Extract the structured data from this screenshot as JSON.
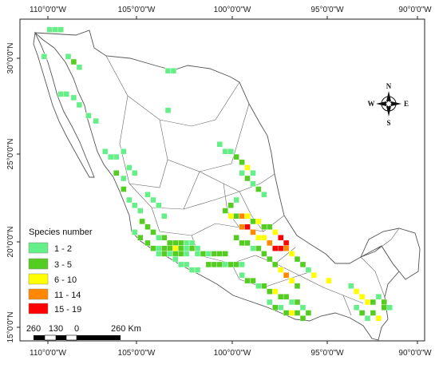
{
  "map": {
    "top_ticks": [
      "110°0'0\"W",
      "105°0'0\"W",
      "100°0'0\"W",
      "95°0'0\"W",
      "90°0'0\"W"
    ],
    "bottom_ticks": [
      "110°0'0\"W",
      "105°0'0\"W",
      "100°0'0\"W",
      "95°0'0\"W",
      "90°0'0\"W"
    ],
    "left_ticks": [
      "30°0'0\"N",
      "25°0'0\"N",
      "20°0'0\"N",
      "15°0'0\"N"
    ],
    "land_color": "#ffffff",
    "boundary_color": "#555555"
  },
  "legend": {
    "title": "Species number",
    "classes": [
      {
        "label": "1 - 2",
        "color": "#66ee88",
        "min": 1,
        "max": 2
      },
      {
        "label": "3 - 5",
        "color": "#55cc22",
        "min": 3,
        "max": 5
      },
      {
        "label": "6 - 10",
        "color": "#ffff00",
        "min": 6,
        "max": 10
      },
      {
        "label": "11 - 14",
        "color": "#ff8800",
        "min": 11,
        "max": 14
      },
      {
        "label": "15 - 19",
        "color": "#ff0000",
        "min": 15,
        "max": 19
      }
    ]
  },
  "scale_bar": {
    "labels": [
      "260",
      "130",
      "0",
      "260 Km"
    ]
  },
  "north_arrow": {
    "n": "N",
    "s": "S",
    "e": "E",
    "w": "W"
  },
  "grid_cells": [
    [
      -109.9,
      31.6,
      1
    ],
    [
      -109.6,
      31.6,
      1
    ],
    [
      -109.3,
      31.6,
      1
    ],
    [
      -110.2,
      30.1,
      1
    ],
    [
      -108.9,
      30.1,
      1
    ],
    [
      -108.6,
      29.8,
      3
    ],
    [
      -108.3,
      29.5,
      1
    ],
    [
      -109.3,
      28.0,
      1
    ],
    [
      -109.0,
      28.0,
      1
    ],
    [
      -108.6,
      27.8,
      1
    ],
    [
      -108.3,
      27.4,
      1
    ],
    [
      -107.8,
      26.8,
      1
    ],
    [
      -107.4,
      26.5,
      1
    ],
    [
      -103.5,
      29.3,
      1
    ],
    [
      -103.2,
      29.3,
      1
    ],
    [
      -103.5,
      27.1,
      1
    ],
    [
      -106.9,
      24.8,
      1
    ],
    [
      -106.6,
      24.5,
      1
    ],
    [
      -106.3,
      24.5,
      1
    ],
    [
      -105.9,
      24.8,
      1
    ],
    [
      -106.3,
      23.6,
      3
    ],
    [
      -105.9,
      23.3,
      1
    ],
    [
      -105.6,
      23.9,
      1
    ],
    [
      -105.3,
      23.6,
      1
    ],
    [
      -105.9,
      22.7,
      3
    ],
    [
      -105.6,
      22.1,
      1
    ],
    [
      -105.3,
      21.8,
      1
    ],
    [
      -105.0,
      21.5,
      1
    ],
    [
      -104.6,
      22.4,
      1
    ],
    [
      -104.3,
      22.1,
      1
    ],
    [
      -104.0,
      21.8,
      1
    ],
    [
      -103.7,
      21.2,
      1
    ],
    [
      -104.9,
      20.9,
      3
    ],
    [
      -104.6,
      20.6,
      3
    ],
    [
      -104.3,
      20.3,
      3
    ],
    [
      -104.0,
      20.0,
      1
    ],
    [
      -103.7,
      20.0,
      3
    ],
    [
      -103.4,
      19.7,
      3
    ],
    [
      -103.1,
      19.7,
      3
    ],
    [
      -102.8,
      19.7,
      3
    ],
    [
      -102.5,
      19.7,
      1
    ],
    [
      -102.2,
      19.7,
      1
    ],
    [
      -105.3,
      20.3,
      1
    ],
    [
      -105.0,
      20.0,
      3
    ],
    [
      -104.6,
      19.7,
      3
    ],
    [
      -104.3,
      19.4,
      3
    ],
    [
      -104.0,
      19.4,
      1
    ],
    [
      -103.7,
      19.4,
      3
    ],
    [
      -103.4,
      19.4,
      3
    ],
    [
      -103.1,
      19.4,
      6
    ],
    [
      -102.8,
      19.4,
      3
    ],
    [
      -102.5,
      19.4,
      1
    ],
    [
      -102.2,
      19.4,
      3
    ],
    [
      -101.9,
      19.4,
      1
    ],
    [
      -104.0,
      19.1,
      1
    ],
    [
      -103.7,
      19.1,
      3
    ],
    [
      -103.4,
      19.1,
      1
    ],
    [
      -103.1,
      19.1,
      3
    ],
    [
      -102.8,
      19.1,
      3
    ],
    [
      -102.5,
      19.1,
      1
    ],
    [
      -101.9,
      19.1,
      1
    ],
    [
      -101.6,
      19.1,
      3
    ],
    [
      -101.3,
      19.1,
      1
    ],
    [
      -101.0,
      19.1,
      3
    ],
    [
      -100.7,
      19.1,
      3
    ],
    [
      -100.4,
      19.1,
      3
    ],
    [
      -103.1,
      18.8,
      1
    ],
    [
      -102.8,
      18.5,
      1
    ],
    [
      -102.5,
      18.5,
      1
    ],
    [
      -102.2,
      18.2,
      1
    ],
    [
      -101.9,
      18.2,
      1
    ],
    [
      -101.3,
      18.5,
      3
    ],
    [
      -101.0,
      18.5,
      3
    ],
    [
      -100.7,
      18.5,
      3
    ],
    [
      -100.4,
      18.5,
      1
    ],
    [
      -100.1,
      18.5,
      3
    ],
    [
      -99.8,
      18.5,
      3
    ],
    [
      -99.5,
      18.5,
      1
    ],
    [
      -100.7,
      25.2,
      1
    ],
    [
      -100.4,
      24.8,
      1
    ],
    [
      -100.1,
      24.8,
      1
    ],
    [
      -99.8,
      24.5,
      3
    ],
    [
      -99.5,
      24.2,
      3
    ],
    [
      -99.2,
      23.9,
      6
    ],
    [
      -98.9,
      23.6,
      1
    ],
    [
      -99.5,
      23.6,
      1
    ],
    [
      -99.2,
      23.3,
      3
    ],
    [
      -98.9,
      23.0,
      1
    ],
    [
      -98.6,
      22.7,
      3
    ],
    [
      -98.3,
      22.4,
      1
    ],
    [
      -99.8,
      22.1,
      1
    ],
    [
      -100.1,
      21.8,
      3
    ],
    [
      -100.4,
      21.5,
      3
    ],
    [
      -100.1,
      21.2,
      6
    ],
    [
      -99.8,
      21.2,
      3
    ],
    [
      -99.5,
      21.2,
      11
    ],
    [
      -99.2,
      21.2,
      6
    ],
    [
      -98.9,
      20.9,
      3
    ],
    [
      -98.6,
      20.9,
      6
    ],
    [
      -98.3,
      20.6,
      3
    ],
    [
      -98.0,
      20.6,
      3
    ],
    [
      -97.7,
      20.3,
      6
    ],
    [
      -97.4,
      20.0,
      15
    ],
    [
      -97.1,
      19.7,
      15
    ],
    [
      -99.5,
      20.6,
      11
    ],
    [
      -99.2,
      20.6,
      15
    ],
    [
      -98.9,
      20.3,
      11
    ],
    [
      -98.6,
      20.0,
      6
    ],
    [
      -98.3,
      20.0,
      6
    ],
    [
      -98.0,
      19.7,
      11
    ],
    [
      -97.7,
      19.4,
      15
    ],
    [
      -97.4,
      19.4,
      15
    ],
    [
      -97.1,
      19.4,
      11
    ],
    [
      -96.8,
      19.1,
      6
    ],
    [
      -96.5,
      18.8,
      3
    ],
    [
      -99.8,
      20.0,
      3
    ],
    [
      -99.5,
      19.7,
      3
    ],
    [
      -99.2,
      19.7,
      3
    ],
    [
      -98.9,
      19.4,
      1
    ],
    [
      -98.6,
      19.4,
      3
    ],
    [
      -98.3,
      19.1,
      3
    ],
    [
      -98.0,
      18.8,
      3
    ],
    [
      -97.7,
      18.5,
      3
    ],
    [
      -97.4,
      18.2,
      6
    ],
    [
      -97.1,
      17.9,
      11
    ],
    [
      -96.8,
      17.6,
      6
    ],
    [
      -96.5,
      17.3,
      3
    ],
    [
      -99.5,
      17.9,
      1
    ],
    [
      -99.2,
      17.6,
      3
    ],
    [
      -98.9,
      17.6,
      3
    ],
    [
      -98.6,
      17.3,
      1
    ],
    [
      -98.3,
      17.3,
      3
    ],
    [
      -98.0,
      17.0,
      3
    ],
    [
      -97.7,
      17.0,
      6
    ],
    [
      -97.4,
      16.7,
      3
    ],
    [
      -97.1,
      16.7,
      3
    ],
    [
      -96.8,
      16.4,
      1
    ],
    [
      -96.5,
      16.4,
      3
    ],
    [
      -96.2,
      16.1,
      1
    ],
    [
      -98.0,
      16.4,
      1
    ],
    [
      -97.7,
      16.1,
      3
    ],
    [
      -97.4,
      16.1,
      1
    ],
    [
      -97.1,
      15.8,
      3
    ],
    [
      -96.8,
      15.8,
      6
    ],
    [
      -96.5,
      15.8,
      3
    ],
    [
      -96.2,
      15.5,
      3
    ],
    [
      -95.9,
      15.8,
      3
    ],
    [
      -96.2,
      18.5,
      3
    ],
    [
      -95.9,
      18.2,
      1
    ],
    [
      -95.6,
      17.9,
      6
    ],
    [
      -94.8,
      17.6,
      6
    ],
    [
      -93.6,
      17.3,
      1
    ],
    [
      -93.3,
      17.0,
      6
    ],
    [
      -93.0,
      16.7,
      6
    ],
    [
      -92.7,
      16.4,
      6
    ],
    [
      -92.4,
      16.4,
      3
    ],
    [
      -92.1,
      16.7,
      1
    ],
    [
      -91.8,
      16.4,
      3
    ],
    [
      -91.5,
      16.1,
      1
    ],
    [
      -91.8,
      16.1,
      3
    ],
    [
      -92.4,
      15.8,
      3
    ],
    [
      -92.1,
      15.5,
      6
    ],
    [
      -92.7,
      15.5,
      1
    ],
    [
      -93.0,
      15.8,
      3
    ],
    [
      -93.3,
      16.1,
      1
    ]
  ]
}
